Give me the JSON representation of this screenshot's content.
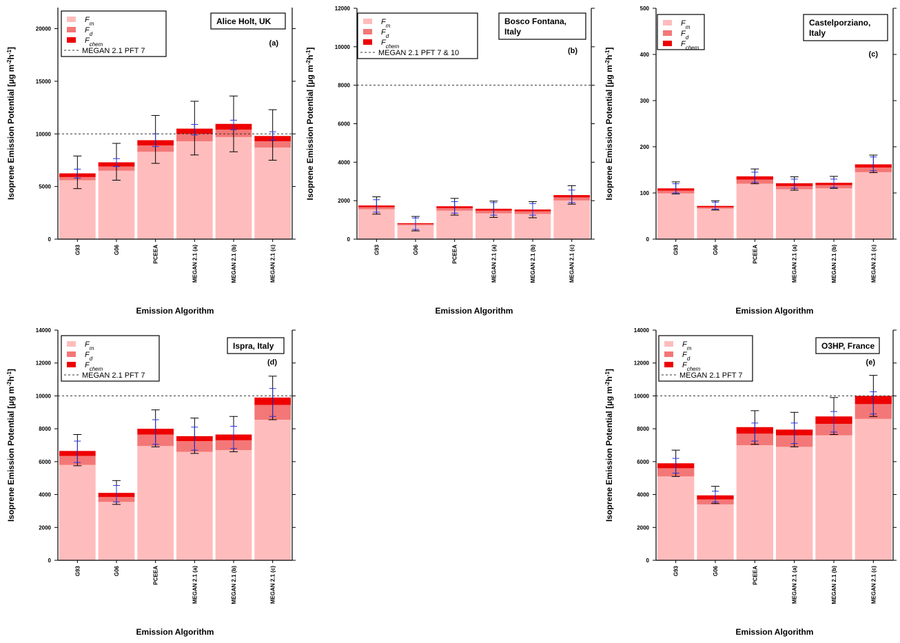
{
  "colors": {
    "Fm": "#ffbcbc",
    "Fd": "#f47777",
    "Fchem": "#ee0000",
    "error_black": "#000000",
    "error_blue": "#2233dd",
    "frame": "#000000"
  },
  "y_axis_label": "Isoprene Emission Potential [µg m",
  "y_axis_units": {
    "m_exp": "-2",
    "h": "h",
    "h_exp": "-1",
    "close": "]"
  },
  "x_axis_label": "Emission Algorithm",
  "legend_symbols": {
    "F": "F",
    "m": "m",
    "d": "d",
    "chem": "chem"
  },
  "chart_data": [
    {
      "type": "bar",
      "stacked": true,
      "panel": "(a)",
      "site": [
        "Alice Holt, UK"
      ],
      "categories": [
        "G93",
        "G06",
        "PCEEA",
        "MEGAN 2.1 (a)",
        "MEGAN 2.1 (b)",
        "MEGAN 2.1 (c)"
      ],
      "ylim": [
        0,
        22000
      ],
      "yticks": [
        0,
        5000,
        10000,
        15000,
        20000
      ],
      "reference_line": {
        "label": "MEGAN 2.1 PFT 7",
        "value": 10000
      },
      "series": [
        {
          "name": "Fm",
          "values": [
            5600,
            6500,
            8300,
            9300,
            9700,
            8700
          ]
        },
        {
          "name": "Fd",
          "values": [
            300,
            400,
            600,
            700,
            700,
            600
          ]
        },
        {
          "name": "Fchem",
          "values": [
            350,
            400,
            500,
            500,
            550,
            500
          ]
        }
      ],
      "error_black": [
        [
          4800,
          7900
        ],
        [
          5600,
          9100
        ],
        [
          7200,
          11750
        ],
        [
          8000,
          13100
        ],
        [
          8300,
          13600
        ],
        [
          7500,
          12300
        ]
      ],
      "error_blue": [
        [
          5800,
          6650
        ],
        [
          6900,
          7650
        ],
        [
          8800,
          10000
        ],
        [
          9900,
          10900
        ],
        [
          10400,
          11300
        ],
        [
          9400,
          10200
        ]
      ]
    },
    {
      "type": "bar",
      "stacked": true,
      "panel": "(b)",
      "site": [
        "Bosco Fontana,",
        "Italy"
      ],
      "categories": [
        "G93",
        "G06",
        "PCEEA",
        "MEGAN 2.1 (a)",
        "MEGAN 2.1 (b)",
        "MEGAN 2.1 (c)"
      ],
      "ylim": [
        0,
        12000
      ],
      "yticks": [
        0,
        2000,
        4000,
        6000,
        8000,
        10000,
        12000
      ],
      "reference_line": {
        "label": "MEGAN 2.1 PFT 7 & 10",
        "value": 8000
      },
      "series": [
        {
          "name": "Fm",
          "values": [
            1550,
            720,
            1480,
            1340,
            1310,
            2010
          ]
        },
        {
          "name": "Fd",
          "values": [
            110,
            60,
            130,
            140,
            140,
            160
          ]
        },
        {
          "name": "Fchem",
          "values": [
            90,
            50,
            100,
            100,
            90,
            120
          ]
        }
      ],
      "error_black": [
        [
          1300,
          2200
        ],
        [
          430,
          1180
        ],
        [
          1250,
          2120
        ],
        [
          1130,
          1980
        ],
        [
          1110,
          1950
        ],
        [
          1820,
          2780
        ]
      ],
      "error_blue": [
        [
          1400,
          2050
        ],
        [
          500,
          1100
        ],
        [
          1350,
          1950
        ],
        [
          1250,
          1900
        ],
        [
          1250,
          1850
        ],
        [
          1900,
          2550
        ]
      ]
    },
    {
      "type": "bar",
      "stacked": true,
      "panel": "(c)",
      "site": [
        "Castelporziano,",
        "Italy"
      ],
      "categories": [
        "G93",
        "G06",
        "PCEEA",
        "MEGAN 2.1 (a)",
        "MEGAN 2.1 (b)",
        "MEGAN 2.1 (c)"
      ],
      "ylim": [
        0,
        500
      ],
      "yticks": [
        0,
        100,
        200,
        300,
        400,
        500
      ],
      "series": [
        {
          "name": "Fm",
          "values": [
            99,
            66,
            120,
            108,
            110,
            145
          ]
        },
        {
          "name": "Fd",
          "values": [
            6,
            3,
            9,
            7,
            7,
            10
          ]
        },
        {
          "name": "Fchem",
          "values": [
            5,
            3,
            7,
            6,
            5,
            7
          ]
        }
      ],
      "error_black": [
        [
          98,
          124
        ],
        [
          63,
          83
        ],
        [
          120,
          152
        ],
        [
          106,
          135
        ],
        [
          110,
          136
        ],
        [
          144,
          182
        ]
      ],
      "error_blue": [
        [
          100,
          120
        ],
        [
          65,
          80
        ],
        [
          123,
          145
        ],
        [
          110,
          130
        ],
        [
          112,
          130
        ],
        [
          148,
          178
        ]
      ]
    },
    {
      "type": "bar",
      "stacked": true,
      "panel": "(d)",
      "site": [
        "Ispra, Italy"
      ],
      "categories": [
        "G93",
        "G06",
        "PCEEA",
        "MEGAN 2.1 (a)",
        "MEGAN 2.1 (b)",
        "MEGAN 2.1 (c)"
      ],
      "ylim": [
        0,
        14000
      ],
      "yticks": [
        0,
        2000,
        4000,
        6000,
        8000,
        10000,
        12000,
        14000
      ],
      "reference_line": {
        "label": "MEGAN 2.1 PFT 7",
        "value": 10000
      },
      "series": [
        {
          "name": "Fm",
          "values": [
            5800,
            3550,
            6950,
            6600,
            6700,
            8550
          ]
        },
        {
          "name": "Fd",
          "values": [
            550,
            300,
            700,
            650,
            600,
            900
          ]
        },
        {
          "name": "Fchem",
          "values": [
            300,
            250,
            350,
            300,
            350,
            450
          ]
        }
      ],
      "error_black": [
        [
          5750,
          7650
        ],
        [
          3400,
          4850
        ],
        [
          6900,
          9150
        ],
        [
          6500,
          8650
        ],
        [
          6600,
          8750
        ],
        [
          8550,
          11200
        ]
      ],
      "error_blue": [
        [
          5950,
          7250
        ],
        [
          3550,
          4550
        ],
        [
          7050,
          8550
        ],
        [
          6700,
          8100
        ],
        [
          6800,
          8150
        ],
        [
          8750,
          10450
        ]
      ]
    },
    {
      "type": "bar",
      "stacked": true,
      "panel": "(e)",
      "site": [
        "O3HP, France"
      ],
      "categories": [
        "G93",
        "G06",
        "PCEEA",
        "MEGAN 2.1 (a)",
        "MEGAN 2.1 (b)",
        "MEGAN 2.1 (c)"
      ],
      "ylim": [
        0,
        14000
      ],
      "yticks": [
        0,
        2000,
        4000,
        6000,
        8000,
        10000,
        12000,
        14000
      ],
      "reference_line": {
        "label": "MEGAN 2.1 PFT 7",
        "value": 10000
      },
      "series": [
        {
          "name": "Fm",
          "values": [
            5100,
            3400,
            7000,
            6900,
            7600,
            8600
          ]
        },
        {
          "name": "Fd",
          "values": [
            500,
            300,
            700,
            700,
            700,
            900
          ]
        },
        {
          "name": "Fchem",
          "values": [
            300,
            250,
            400,
            350,
            450,
            500
          ]
        }
      ],
      "error_black": [
        [
          5100,
          6700
        ],
        [
          3450,
          4500
        ],
        [
          7050,
          9100
        ],
        [
          6900,
          9000
        ],
        [
          7650,
          9900
        ],
        [
          8750,
          11250
        ]
      ],
      "error_blue": [
        [
          5300,
          6200
        ],
        [
          3550,
          4200
        ],
        [
          7250,
          8350
        ],
        [
          7100,
          8350
        ],
        [
          7800,
          9050
        ],
        [
          8900,
          10250
        ]
      ]
    }
  ]
}
